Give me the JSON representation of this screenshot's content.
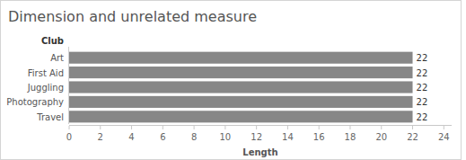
{
  "chart_data": {
    "type": "bar",
    "title": "Dimension and unrelated measure",
    "orientation": "horizontal",
    "ylabel": "Club",
    "xlabel": "Length",
    "categories": [
      "Art",
      "First Aid",
      "Juggling",
      "Photography",
      "Travel"
    ],
    "values": [
      22,
      22,
      22,
      22,
      22
    ],
    "color": "#878787",
    "xlim": [
      0,
      24.5
    ],
    "xticks": [
      0,
      2,
      4,
      6,
      8,
      10,
      12,
      14,
      16,
      18,
      20,
      22,
      24
    ],
    "grid": false,
    "data_labels": true
  }
}
